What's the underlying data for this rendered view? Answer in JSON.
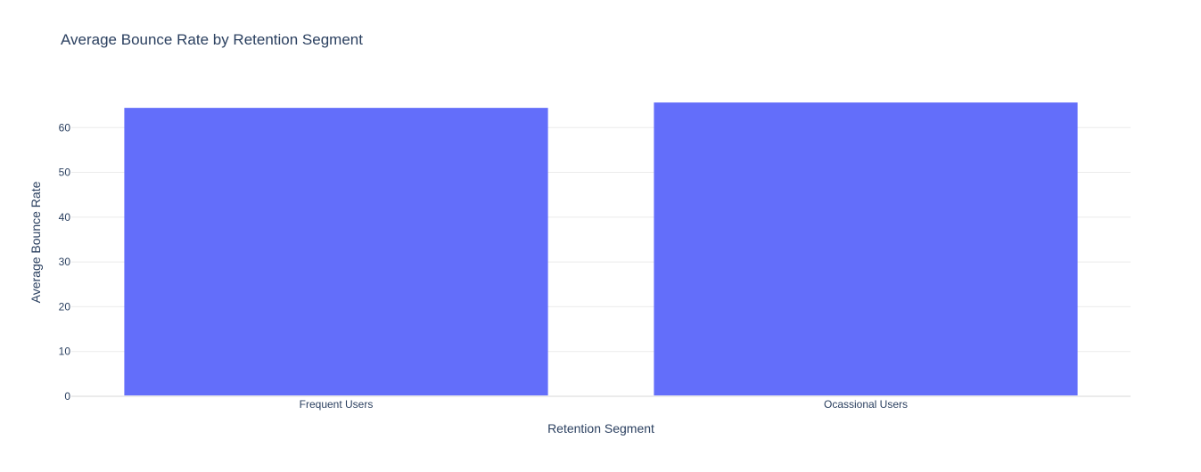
{
  "chart_data": {
    "type": "bar",
    "title": "Average Bounce Rate by Retention Segment",
    "xlabel": "Retention Segment",
    "ylabel": "Average Bounce Rate",
    "categories": [
      "Frequent Users",
      "Ocassional Users"
    ],
    "values": [
      64.4,
      65.6
    ],
    "ylim": [
      0,
      68.6
    ],
    "yticks": [
      0,
      10,
      20,
      30,
      40,
      50,
      60
    ],
    "grid": true,
    "bar_color": "#636efa",
    "grid_color": "#ebebeb",
    "text_color": "#2a3f5f"
  }
}
